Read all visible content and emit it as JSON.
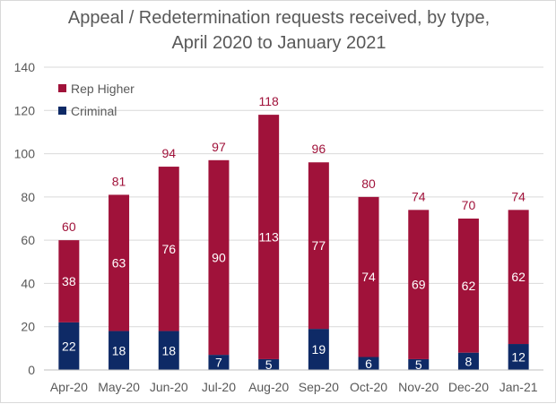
{
  "chart_data": {
    "type": "bar",
    "stacked": true,
    "title_line1": "Appeal / Redetermination requests received, by type,",
    "title_line2": "April 2020 to January 2021",
    "xlabel": "",
    "ylabel": "",
    "ylim": [
      0,
      140
    ],
    "yticks": [
      "0",
      "20",
      "40",
      "60",
      "80",
      "100",
      "120",
      "140"
    ],
    "grid": true,
    "legend_position": "top-left",
    "categories": [
      "Apr-20",
      "May-20",
      "Jun-20",
      "Jul-20",
      "Aug-20",
      "Sep-20",
      "Oct-20",
      "Nov-20",
      "Dec-20",
      "Jan-21"
    ],
    "series": [
      {
        "name": "Criminal",
        "color": "#0e2a66",
        "values": [
          22,
          18,
          18,
          7,
          5,
          19,
          6,
          5,
          8,
          12
        ]
      },
      {
        "name": "Rep Higher",
        "color": "#a0123a",
        "values": [
          38,
          63,
          76,
          90,
          113,
          77,
          74,
          69,
          62,
          62
        ]
      }
    ],
    "totals": [
      60,
      81,
      94,
      97,
      118,
      96,
      80,
      74,
      70,
      74
    ],
    "legend": [
      {
        "name": "Rep Higher",
        "color": "#a0123a"
      },
      {
        "name": "Criminal",
        "color": "#0e2a66"
      }
    ],
    "total_label_color": "#a0123a",
    "axis_text_color": "#595959",
    "grid_color": "#d9d9d9"
  }
}
